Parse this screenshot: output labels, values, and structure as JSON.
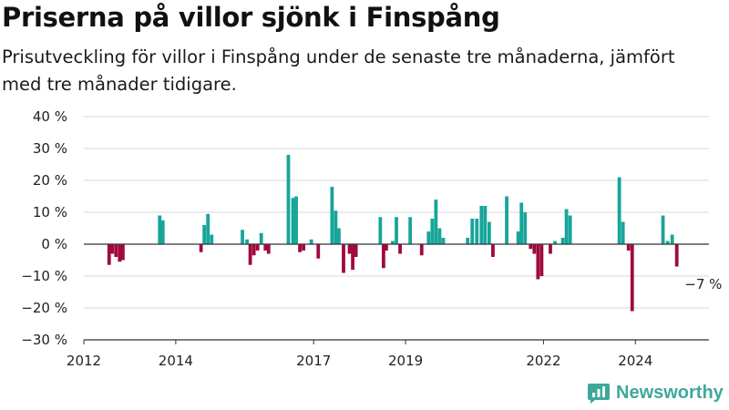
{
  "title": "Priserna på villor sjönk i Finspång",
  "subtitle": "Prisutveckling för villor i Finspång under de senaste tre månaderna, jämfört med tre månader tidigare.",
  "brand": {
    "name": "Newsworthy",
    "color": "#3ea89a"
  },
  "colors": {
    "positive": "#17a59a",
    "negative": "#a0093f",
    "grid": "#d9d9d9",
    "axis": "#333333"
  },
  "chart_data": {
    "type": "bar",
    "title": "Priserna på villor sjönk i Finspång",
    "xlabel": "",
    "ylabel": "",
    "ylim": [
      -30,
      40
    ],
    "yticks": [
      -30,
      -20,
      -10,
      0,
      10,
      20,
      30,
      40
    ],
    "ytick_labels": [
      "−30 %",
      "−20 %",
      "−10 %",
      "0 %",
      "10 %",
      "20 %",
      "30 %",
      "40 %"
    ],
    "xlim": [
      2012,
      2025.6
    ],
    "xticks": [
      2012,
      2014,
      2017,
      2019,
      2022,
      2024
    ],
    "xtick_labels": [
      "2012",
      "2014",
      "2017",
      "2019",
      "2022",
      "2024"
    ],
    "grid": true,
    "annotation": {
      "x": 2025.2,
      "y": -7,
      "label": "−7 %"
    },
    "points": [
      {
        "x": 2012.55,
        "y": -6.5
      },
      {
        "x": 2012.62,
        "y": -3
      },
      {
        "x": 2012.7,
        "y": -4
      },
      {
        "x": 2012.78,
        "y": -5.5
      },
      {
        "x": 2012.85,
        "y": -5
      },
      {
        "x": 2013.65,
        "y": 9
      },
      {
        "x": 2013.72,
        "y": 7.5
      },
      {
        "x": 2014.55,
        "y": -2.5
      },
      {
        "x": 2014.62,
        "y": 6
      },
      {
        "x": 2014.7,
        "y": 9.5
      },
      {
        "x": 2014.78,
        "y": 3
      },
      {
        "x": 2015.45,
        "y": 4.5
      },
      {
        "x": 2015.55,
        "y": 1.5
      },
      {
        "x": 2015.62,
        "y": -6.5
      },
      {
        "x": 2015.7,
        "y": -3.5
      },
      {
        "x": 2015.78,
        "y": -2
      },
      {
        "x": 2015.86,
        "y": 3.5
      },
      {
        "x": 2015.95,
        "y": -2
      },
      {
        "x": 2016.02,
        "y": -3
      },
      {
        "x": 2016.45,
        "y": 28
      },
      {
        "x": 2016.55,
        "y": 14.5
      },
      {
        "x": 2016.62,
        "y": 15
      },
      {
        "x": 2016.7,
        "y": -2.5
      },
      {
        "x": 2016.78,
        "y": -2
      },
      {
        "x": 2016.95,
        "y": 1.5
      },
      {
        "x": 2017.1,
        "y": -4.5
      },
      {
        "x": 2017.4,
        "y": 18
      },
      {
        "x": 2017.48,
        "y": 10.5
      },
      {
        "x": 2017.55,
        "y": 5
      },
      {
        "x": 2017.65,
        "y": -9
      },
      {
        "x": 2017.78,
        "y": -3
      },
      {
        "x": 2017.85,
        "y": -8
      },
      {
        "x": 2017.92,
        "y": -4
      },
      {
        "x": 2018.45,
        "y": 8.5
      },
      {
        "x": 2018.52,
        "y": -7.5
      },
      {
        "x": 2018.58,
        "y": -2
      },
      {
        "x": 2018.72,
        "y": 1
      },
      {
        "x": 2018.8,
        "y": 8.5
      },
      {
        "x": 2018.88,
        "y": -3
      },
      {
        "x": 2019.1,
        "y": 8.5
      },
      {
        "x": 2019.35,
        "y": -3.5
      },
      {
        "x": 2019.5,
        "y": 4
      },
      {
        "x": 2019.58,
        "y": 8
      },
      {
        "x": 2019.66,
        "y": 14
      },
      {
        "x": 2019.74,
        "y": 5
      },
      {
        "x": 2019.82,
        "y": 2
      },
      {
        "x": 2020.35,
        "y": 2
      },
      {
        "x": 2020.45,
        "y": 8
      },
      {
        "x": 2020.55,
        "y": 8
      },
      {
        "x": 2020.65,
        "y": 12
      },
      {
        "x": 2020.73,
        "y": 12
      },
      {
        "x": 2020.82,
        "y": 7
      },
      {
        "x": 2020.9,
        "y": -4
      },
      {
        "x": 2021.2,
        "y": 15
      },
      {
        "x": 2021.45,
        "y": 4
      },
      {
        "x": 2021.52,
        "y": 13
      },
      {
        "x": 2021.6,
        "y": 10
      },
      {
        "x": 2021.72,
        "y": -1.5
      },
      {
        "x": 2021.8,
        "y": -3
      },
      {
        "x": 2021.88,
        "y": -11
      },
      {
        "x": 2021.96,
        "y": -10
      },
      {
        "x": 2022.15,
        "y": -3
      },
      {
        "x": 2022.25,
        "y": 1
      },
      {
        "x": 2022.42,
        "y": 2
      },
      {
        "x": 2022.5,
        "y": 11
      },
      {
        "x": 2022.58,
        "y": 9
      },
      {
        "x": 2023.65,
        "y": 21
      },
      {
        "x": 2023.73,
        "y": 7
      },
      {
        "x": 2023.85,
        "y": -2
      },
      {
        "x": 2023.93,
        "y": -21
      },
      {
        "x": 2024.6,
        "y": 9
      },
      {
        "x": 2024.7,
        "y": 1
      },
      {
        "x": 2024.8,
        "y": 3
      },
      {
        "x": 2024.9,
        "y": -7
      }
    ]
  }
}
